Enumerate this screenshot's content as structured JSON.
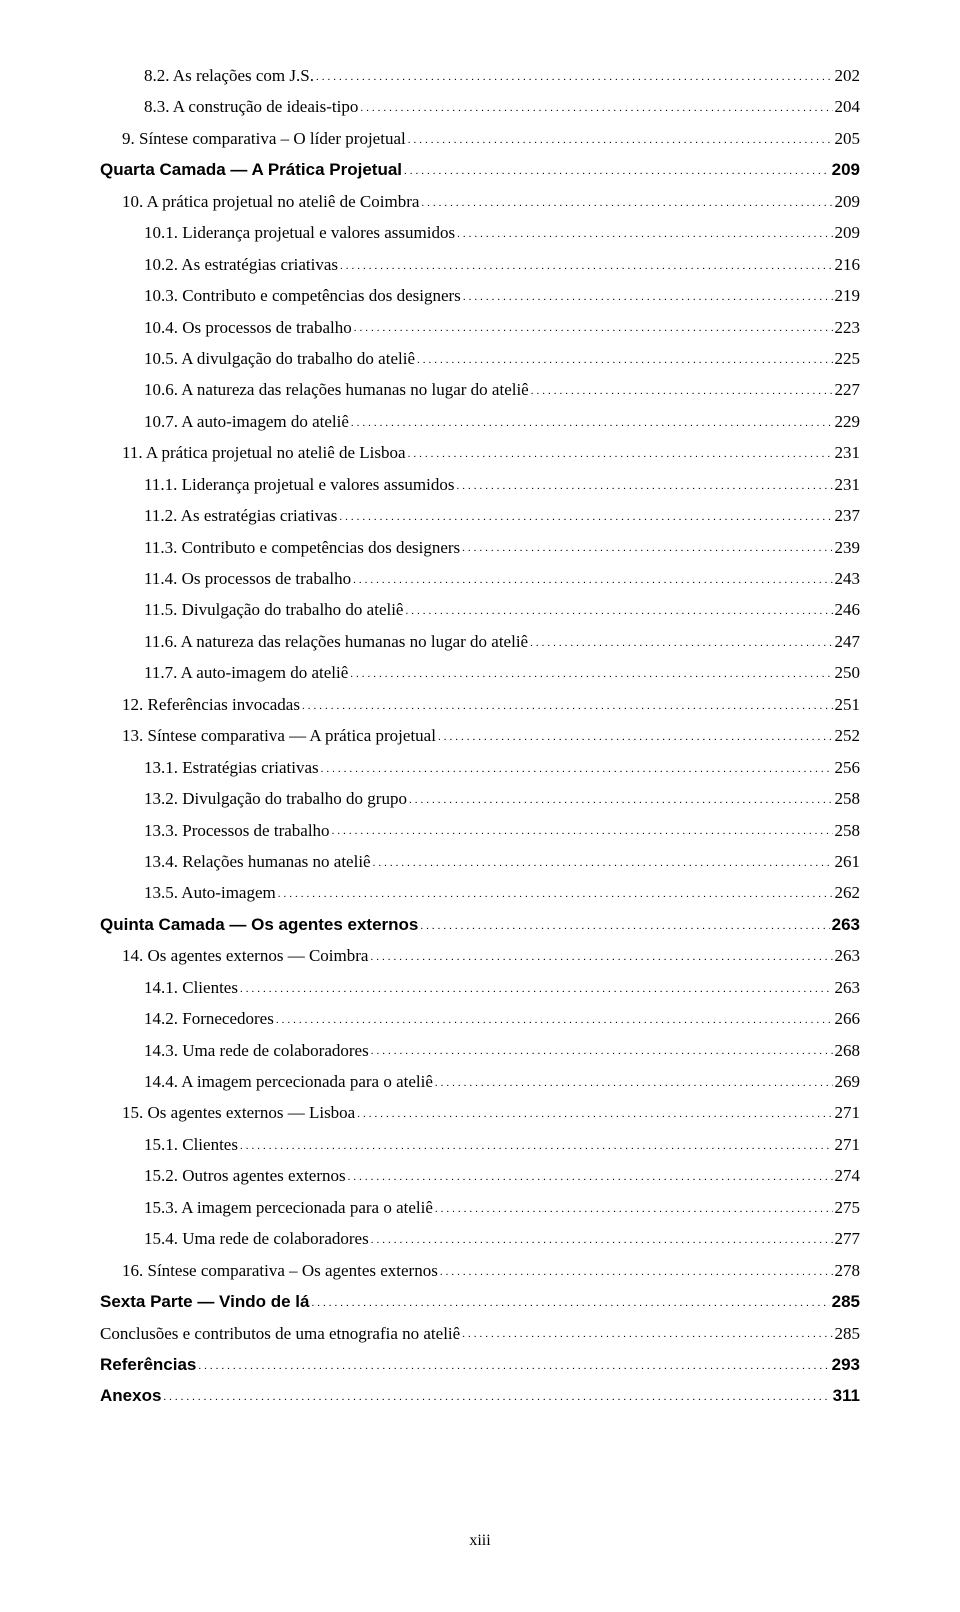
{
  "page_number": "xiii",
  "entries": [
    {
      "level": 2,
      "bold": false,
      "label": "8.2. As relações com J.S.",
      "page": "202"
    },
    {
      "level": 2,
      "bold": false,
      "label": "8.3. A construção de ideais-tipo",
      "page": "204"
    },
    {
      "level": 1,
      "bold": false,
      "label": "9. Síntese comparativa – O líder projetual",
      "page": "205"
    },
    {
      "level": 0,
      "bold": true,
      "label": "Quarta Camada — A Prática Projetual",
      "page": "209"
    },
    {
      "level": 1,
      "bold": false,
      "label": "10. A prática projetual no ateliê de Coimbra",
      "page": "209"
    },
    {
      "level": 2,
      "bold": false,
      "label": "10.1. Liderança projetual e valores assumidos",
      "page": "209"
    },
    {
      "level": 2,
      "bold": false,
      "label": "10.2. As  estratégias criativas",
      "page": "216"
    },
    {
      "level": 2,
      "bold": false,
      "label": "10.3. Contributo e competências dos designers",
      "page": "219"
    },
    {
      "level": 2,
      "bold": false,
      "label": "10.4. Os processos de trabalho",
      "page": "223"
    },
    {
      "level": 2,
      "bold": false,
      "label": "10.5. A divulgação do trabalho do ateliê",
      "page": "225"
    },
    {
      "level": 2,
      "bold": false,
      "label": "10.6. A natureza das relações humanas no lugar do ateliê",
      "page": "227"
    },
    {
      "level": 2,
      "bold": false,
      "label": "10.7. A auto-imagem do ateliê",
      "page": "229"
    },
    {
      "level": 1,
      "bold": false,
      "label": "11. A prática projetual no ateliê de Lisboa",
      "page": "231"
    },
    {
      "level": 2,
      "bold": false,
      "label": "11.1. Liderança projetual e valores assumidos",
      "page": "231"
    },
    {
      "level": 2,
      "bold": false,
      "label": "11.2. As estratégias criativas",
      "page": "237"
    },
    {
      "level": 2,
      "bold": false,
      "label": "11.3. Contributo e competências dos designers",
      "page": "239"
    },
    {
      "level": 2,
      "bold": false,
      "label": "11.4. Os processos de trabalho",
      "page": "243"
    },
    {
      "level": 2,
      "bold": false,
      "label": "11.5. Divulgação do trabalho do ateliê",
      "page": "246"
    },
    {
      "level": 2,
      "bold": false,
      "label": "11.6. A natureza das relações humanas no lugar do ateliê",
      "page": "247"
    },
    {
      "level": 2,
      "bold": false,
      "label": "11.7. A auto-imagem do ateliê",
      "page": "250"
    },
    {
      "level": 1,
      "bold": false,
      "label": "12. Referências invocadas",
      "page": "251"
    },
    {
      "level": 1,
      "bold": false,
      "label": "13. Síntese comparativa — A prática projetual",
      "page": "252"
    },
    {
      "level": 2,
      "bold": false,
      "label": "13.1. Estratégias criativas",
      "page": "256"
    },
    {
      "level": 2,
      "bold": false,
      "label": "13.2. Divulgação do trabalho do grupo",
      "page": "258"
    },
    {
      "level": 2,
      "bold": false,
      "label": "13.3. Processos de trabalho",
      "page": "258"
    },
    {
      "level": 2,
      "bold": false,
      "label": "13.4. Relações humanas no ateliê",
      "page": "261"
    },
    {
      "level": 2,
      "bold": false,
      "label": "13.5. Auto-imagem",
      "page": "262"
    },
    {
      "level": 0,
      "bold": true,
      "label": "Quinta Camada — Os agentes externos",
      "page": "263"
    },
    {
      "level": 1,
      "bold": false,
      "label": "14. Os agentes externos — Coimbra",
      "page": "263"
    },
    {
      "level": 2,
      "bold": false,
      "label": "14.1. Clientes",
      "page": "263"
    },
    {
      "level": 2,
      "bold": false,
      "label": "14.2. Fornecedores",
      "page": "266"
    },
    {
      "level": 2,
      "bold": false,
      "label": "14.3. Uma rede de colaboradores",
      "page": "268"
    },
    {
      "level": 2,
      "bold": false,
      "label": "14.4. A imagem percecionada para o ateliê",
      "page": "269"
    },
    {
      "level": 1,
      "bold": false,
      "label": "15. Os agentes externos — Lisboa",
      "page": "271"
    },
    {
      "level": 2,
      "bold": false,
      "label": "15.1. Clientes",
      "page": "271"
    },
    {
      "level": 2,
      "bold": false,
      "label": "15.2. Outros agentes externos",
      "page": "274"
    },
    {
      "level": 2,
      "bold": false,
      "label": "15.3. A imagem percecionada para o ateliê",
      "page": "275"
    },
    {
      "level": 2,
      "bold": false,
      "label": "15.4. Uma rede de colaboradores",
      "page": "277"
    },
    {
      "level": 1,
      "bold": false,
      "label": "16. Síntese comparativa – Os agentes externos",
      "page": "278"
    },
    {
      "level": 0,
      "bold": true,
      "label": "Sexta Parte — Vindo de lá",
      "page": "285"
    },
    {
      "level": 0,
      "bold": false,
      "label": "Conclusões e contributos de uma etnografia no ateliê",
      "page": "285"
    },
    {
      "level": 0,
      "bold": true,
      "label": "Referências",
      "page": "293"
    },
    {
      "level": 0,
      "bold": true,
      "label": "Anexos",
      "page": "311"
    }
  ]
}
